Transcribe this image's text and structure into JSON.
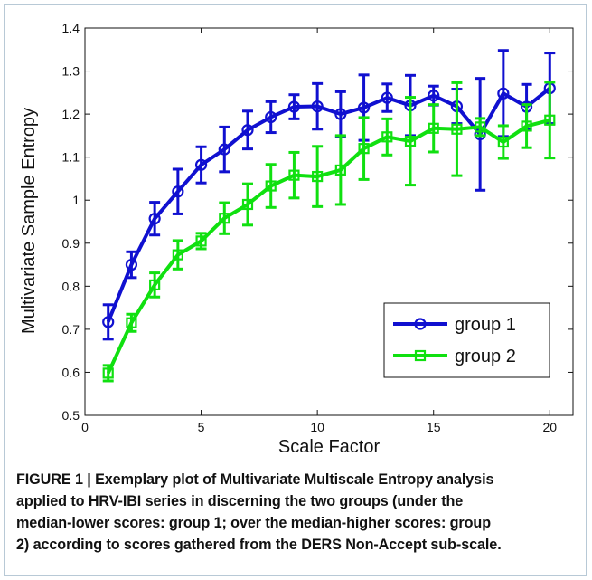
{
  "chart_data": {
    "type": "line",
    "xlabel": "Scale Factor",
    "ylabel": "Multivariate Sample Entropy",
    "xlim": [
      0,
      21
    ],
    "ylim": [
      0.5,
      1.4
    ],
    "xticks": [
      0,
      5,
      10,
      15,
      20
    ],
    "yticks": [
      0.5,
      0.6,
      0.7,
      0.8,
      0.9,
      1,
      1.1,
      1.2,
      1.3,
      1.4
    ],
    "grid": false,
    "legend_position": "lower-right",
    "x": [
      1,
      2,
      3,
      4,
      5,
      6,
      7,
      8,
      9,
      10,
      11,
      12,
      13,
      14,
      15,
      16,
      17,
      18,
      19,
      20
    ],
    "series": [
      {
        "name": "group 1",
        "color": "#1010d0",
        "marker": "circle",
        "values": [
          0.717,
          0.85,
          0.957,
          1.02,
          1.082,
          1.118,
          1.163,
          1.193,
          1.217,
          1.218,
          1.2,
          1.215,
          1.238,
          1.22,
          1.243,
          1.218,
          1.153,
          1.248,
          1.217,
          1.26
        ],
        "errors": [
          0.04,
          0.03,
          0.038,
          0.052,
          0.042,
          0.052,
          0.044,
          0.036,
          0.028,
          0.053,
          0.052,
          0.076,
          0.032,
          0.07,
          0.022,
          0.04,
          0.13,
          0.1,
          0.052,
          0.082
        ]
      },
      {
        "name": "group 2",
        "color": "#10e010",
        "marker": "square",
        "values": [
          0.598,
          0.715,
          0.803,
          0.873,
          0.905,
          0.958,
          0.99,
          1.033,
          1.058,
          1.055,
          1.07,
          1.12,
          1.147,
          1.137,
          1.167,
          1.165,
          1.17,
          1.135,
          1.172,
          1.186
        ],
        "errors": [
          0.018,
          0.02,
          0.028,
          0.033,
          0.018,
          0.036,
          0.048,
          0.05,
          0.053,
          0.07,
          0.08,
          0.072,
          0.042,
          0.102,
          0.055,
          0.108,
          0.02,
          0.038,
          0.05,
          0.088
        ]
      }
    ]
  },
  "caption": {
    "label": "FIGURE 1 |",
    "lines": [
      "FIGURE 1 | Exemplary plot of Multivariate Multiscale Entropy analysis",
      "applied to HRV-IBI series in discerning the two groups (under the",
      "median-lower scores: group 1; over the median-higher scores: group",
      "2) according to scores gathered from the DERS Non-Accept sub-scale."
    ]
  }
}
